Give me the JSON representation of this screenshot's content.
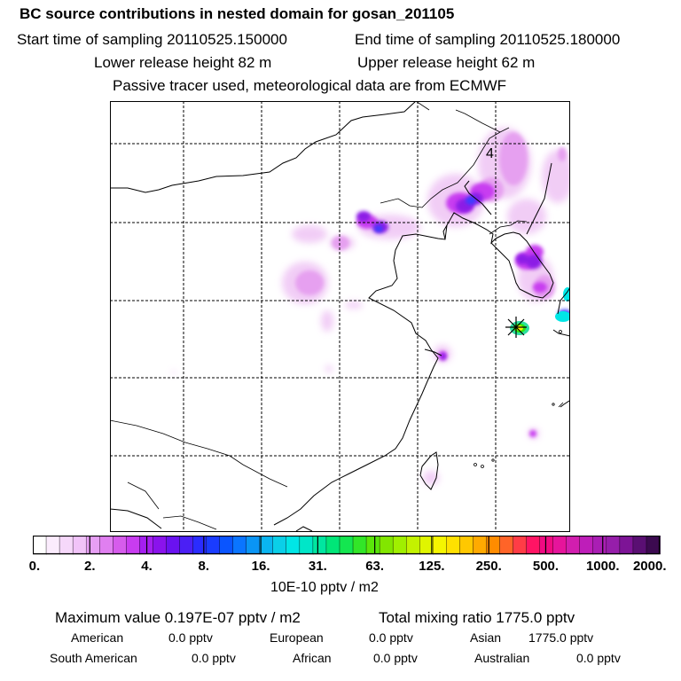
{
  "header": {
    "title": "BC  source contributions in nested domain for gosan_201105",
    "start_label": "Start time of sampling 20110525.150000",
    "end_label": "End time of sampling 20110525.180000",
    "lower_label": "Lower release height   82 m",
    "upper_label": "Upper release height   62 m",
    "note": "Passive tracer used, meteorological data are from ECMWF"
  },
  "map": {
    "station_label": "4",
    "colors": {
      "pink_light": "#f0c8f5",
      "pink": "#e6a0f0",
      "magenta": "#c83cf0",
      "purple": "#8c1ee6",
      "blue": "#3c3cff",
      "cyan": "#00e6e6",
      "green": "#2ee60a",
      "yellow": "#f5f500"
    }
  },
  "colorbar": {
    "colors": [
      "#ffffff",
      "#fbecfd",
      "#f6d8fa",
      "#f1c3f8",
      "#e79ff4",
      "#e07ff0",
      "#d65cec",
      "#c83cf0",
      "#a51ff0",
      "#8a13ec",
      "#6a12f0",
      "#4b1ff5",
      "#2a2cff",
      "#1a3cff",
      "#0a55ff",
      "#0a75ff",
      "#0a95f5",
      "#0ab5f0",
      "#0acfe8",
      "#00e6e6",
      "#00e6c8",
      "#00e6a0",
      "#00e678",
      "#14e650",
      "#32e628",
      "#5ae60a",
      "#82e600",
      "#a0ef00",
      "#c3f200",
      "#e0f500",
      "#f5f500",
      "#ffe100",
      "#ffc800",
      "#ffaa00",
      "#ff8c00",
      "#ff6428",
      "#ff3c46",
      "#ff1464",
      "#f00a82",
      "#e6149b",
      "#d21eaf",
      "#be1eb9",
      "#aa1eb4",
      "#961eaa",
      "#7d1496",
      "#5a0f73",
      "#3c0a50"
    ],
    "labels": [
      "0.",
      "2.",
      "4.",
      "8.",
      "16.",
      "31.",
      "63.",
      "125.",
      "250.",
      "500.",
      "1000.",
      "2000."
    ],
    "unit": "10E-10 pptv / m2"
  },
  "summary": {
    "max_label": "Maximum value  0.197E-07 pptv / m2",
    "total_label": "Total mixing ratio     1775.0 pptv",
    "regions_row1": [
      {
        "name": "American",
        "value": "0.0 pptv"
      },
      {
        "name": "European",
        "value": "0.0 pptv"
      },
      {
        "name": "Asian",
        "value": "1775.0 pptv"
      }
    ],
    "regions_row2": [
      {
        "name": "South American",
        "value": "0.0 pptv"
      },
      {
        "name": "African",
        "value": "0.0 pptv"
      },
      {
        "name": "Australian",
        "value": "0.0 pptv"
      }
    ]
  }
}
